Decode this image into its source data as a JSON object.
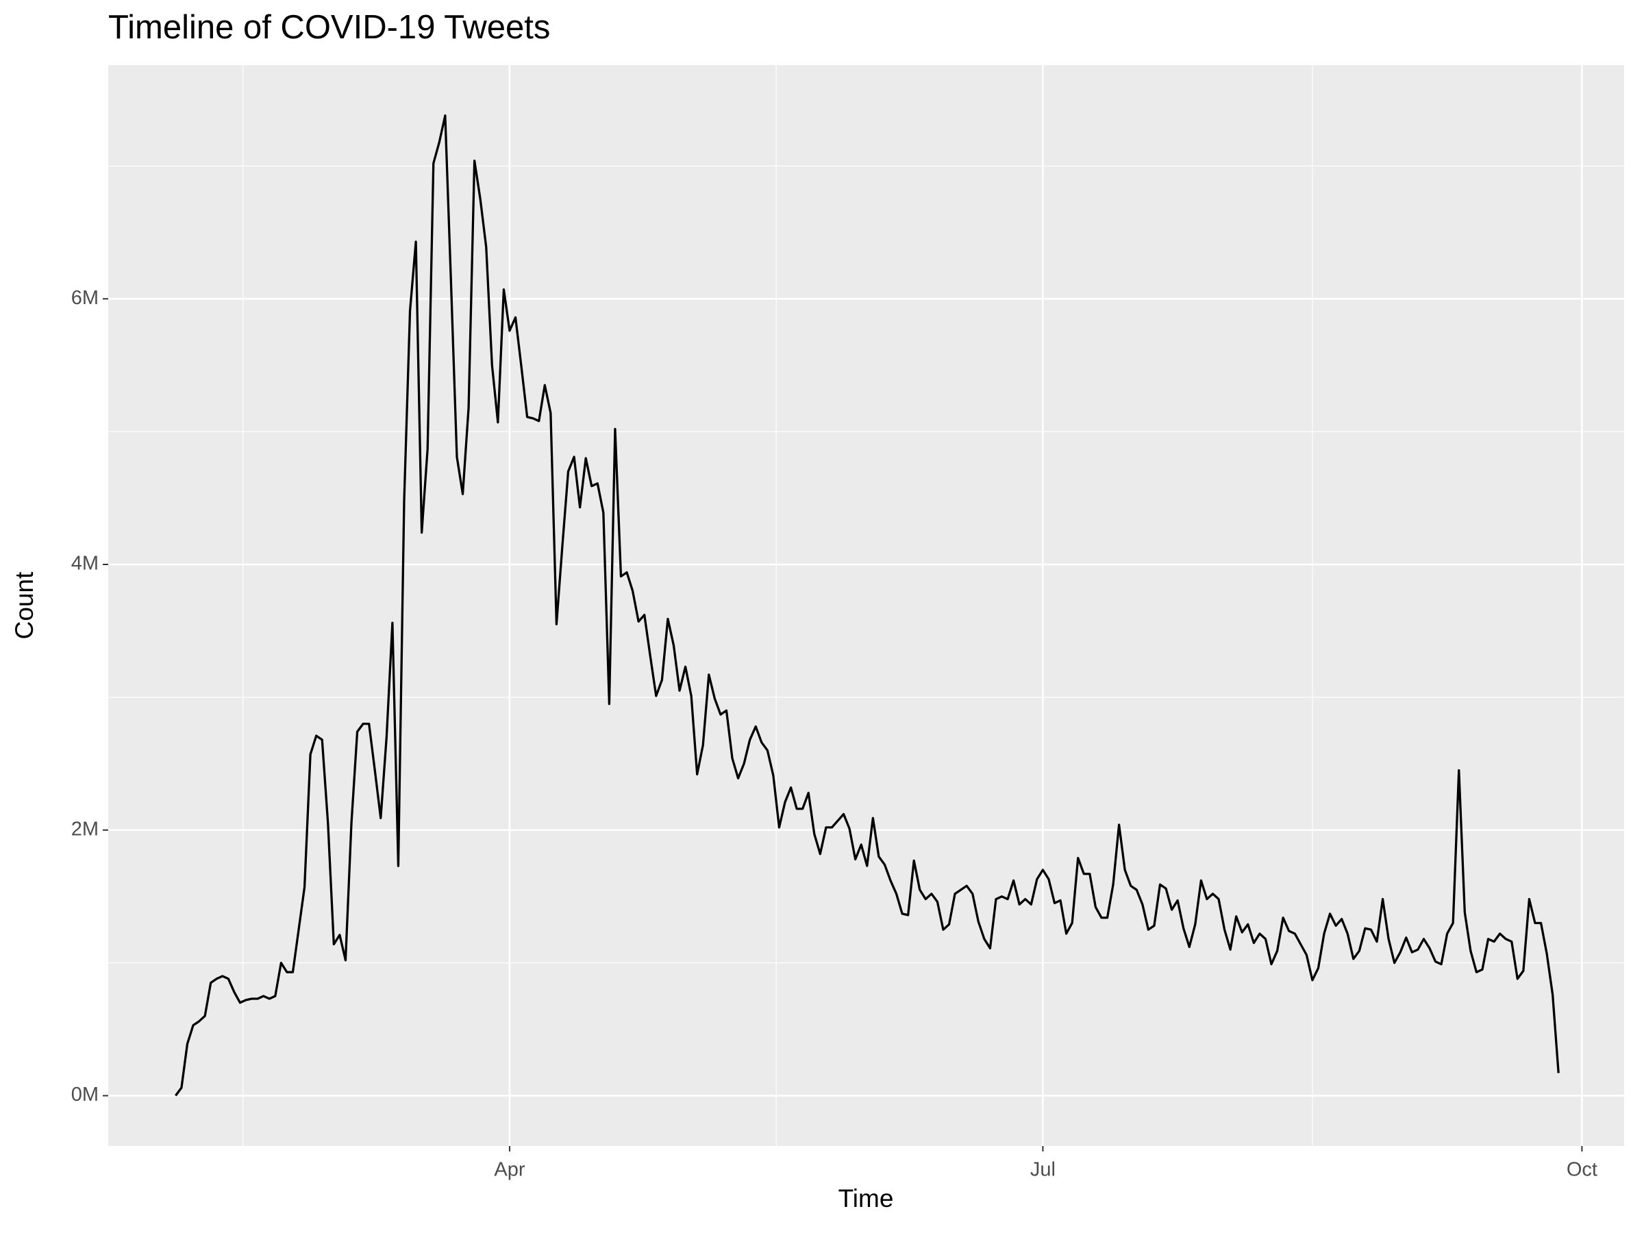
{
  "chart_data": {
    "type": "line",
    "title": "Timeline of COVID-19 Tweets",
    "x_label": "Time",
    "y_label": "Count",
    "x": [
      34,
      35,
      36,
      37,
      38,
      39,
      40,
      41,
      42,
      43,
      44,
      45,
      46,
      47,
      48,
      49,
      50,
      51,
      52,
      53,
      54,
      55,
      56,
      57,
      58,
      59,
      60,
      61,
      62,
      63,
      64,
      65,
      66,
      67,
      68,
      69,
      70,
      71,
      72,
      73,
      74,
      75,
      76,
      77,
      78,
      79,
      80,
      81,
      82,
      83,
      84,
      85,
      86,
      87,
      88,
      89,
      90,
      91,
      92,
      93,
      94,
      95,
      96,
      97,
      98,
      99,
      100,
      101,
      102,
      103,
      104,
      105,
      106,
      107,
      108,
      109,
      110,
      111,
      112,
      113,
      114,
      115,
      116,
      117,
      118,
      119,
      120,
      121,
      122,
      123,
      124,
      125,
      126,
      127,
      128,
      129,
      130,
      131,
      132,
      133,
      134,
      135,
      136,
      137,
      138,
      139,
      140,
      141,
      142,
      143,
      144,
      145,
      146,
      147,
      148,
      149,
      150,
      151,
      152,
      153,
      154,
      155,
      156,
      157,
      158,
      159,
      160,
      161,
      162,
      163,
      164,
      165,
      166,
      167,
      168,
      169,
      170,
      171,
      172,
      173,
      174,
      175,
      176,
      177,
      178,
      179,
      180,
      181,
      182,
      183,
      184,
      185,
      186,
      187,
      188,
      189,
      190,
      191,
      192,
      193,
      194,
      195,
      196,
      197,
      198,
      199,
      200,
      201,
      202,
      203,
      204,
      205,
      206,
      207,
      208,
      209,
      210,
      211,
      212,
      213,
      214,
      215,
      216,
      217,
      218,
      219,
      220,
      221,
      222,
      223,
      224,
      225,
      226,
      227,
      228,
      229,
      230,
      231,
      232,
      233,
      234,
      235,
      236,
      237,
      238,
      239,
      240,
      241,
      242,
      243,
      244,
      245,
      246,
      247,
      248,
      249,
      250,
      251,
      252,
      253,
      254,
      255,
      256,
      257,
      258,
      259,
      260,
      261,
      262,
      263,
      264,
      265,
      266,
      267,
      268,
      269,
      270
    ],
    "series": [
      {
        "name": "Count",
        "color": "#000000",
        "values": [
          0,
          60000,
          390000,
          530000,
          560000,
          600000,
          850000,
          880000,
          900000,
          880000,
          780000,
          700000,
          720000,
          730000,
          730000,
          750000,
          730000,
          750000,
          1000000,
          930000,
          930000,
          1250000,
          1570000,
          2570000,
          2710000,
          2680000,
          2050000,
          1140000,
          1210000,
          1020000,
          2050000,
          2740000,
          2800000,
          2800000,
          2450000,
          2090000,
          2700000,
          3560000,
          1730000,
          4480000,
          5910000,
          6430000,
          4240000,
          4870000,
          7020000,
          7180000,
          7380000,
          6120000,
          4810000,
          4530000,
          5180000,
          7040000,
          6750000,
          6390000,
          5500000,
          5070000,
          6070000,
          5760000,
          5860000,
          5490000,
          5110000,
          5100000,
          5080000,
          5350000,
          5140000,
          3550000,
          4140000,
          4700000,
          4810000,
          4430000,
          4800000,
          4590000,
          4610000,
          4390000,
          2950000,
          5020000,
          3910000,
          3940000,
          3800000,
          3570000,
          3620000,
          3310000,
          3010000,
          3130000,
          3590000,
          3390000,
          3050000,
          3230000,
          3010000,
          2420000,
          2640000,
          3170000,
          2990000,
          2870000,
          2900000,
          2540000,
          2390000,
          2500000,
          2680000,
          2780000,
          2660000,
          2600000,
          2410000,
          2020000,
          2210000,
          2320000,
          2160000,
          2160000,
          2280000,
          1970000,
          1820000,
          2020000,
          2020000,
          2070000,
          2120000,
          2010000,
          1780000,
          1890000,
          1730000,
          2090000,
          1800000,
          1740000,
          1620000,
          1520000,
          1370000,
          1360000,
          1770000,
          1550000,
          1480000,
          1520000,
          1460000,
          1250000,
          1290000,
          1520000,
          1550000,
          1580000,
          1520000,
          1310000,
          1180000,
          1110000,
          1480000,
          1500000,
          1480000,
          1620000,
          1440000,
          1480000,
          1440000,
          1630000,
          1700000,
          1630000,
          1450000,
          1470000,
          1220000,
          1300000,
          1790000,
          1670000,
          1670000,
          1420000,
          1340000,
          1340000,
          1590000,
          2040000,
          1700000,
          1580000,
          1550000,
          1440000,
          1250000,
          1280000,
          1590000,
          1560000,
          1400000,
          1470000,
          1260000,
          1120000,
          1290000,
          1620000,
          1480000,
          1520000,
          1480000,
          1250000,
          1100000,
          1350000,
          1230000,
          1290000,
          1150000,
          1220000,
          1180000,
          990000,
          1090000,
          1340000,
          1240000,
          1220000,
          1140000,
          1060000,
          870000,
          960000,
          1220000,
          1370000,
          1280000,
          1330000,
          1220000,
          1030000,
          1090000,
          1260000,
          1250000,
          1160000,
          1480000,
          1180000,
          1000000,
          1080000,
          1190000,
          1080000,
          1100000,
          1180000,
          1110000,
          1010000,
          990000,
          1220000,
          1300000,
          2450000,
          1380000,
          1090000,
          930000,
          950000,
          1180000,
          1160000,
          1220000,
          1180000,
          1160000,
          880000,
          940000,
          1480000,
          1300000,
          1300000,
          1070000,
          760000,
          170000
        ]
      }
    ],
    "xlim": [
      22.5,
      281.2
    ],
    "xticks": [
      {
        "value": 91,
        "label": "Apr"
      },
      {
        "value": 182,
        "label": "Jul"
      },
      {
        "value": 274,
        "label": "Oct"
      }
    ],
    "ylim": [
      -379000,
      7760000
    ],
    "yticks": [
      {
        "value": 0,
        "label": "0M"
      },
      {
        "value": 2000000,
        "label": "2M"
      },
      {
        "value": 4000000,
        "label": "4M"
      },
      {
        "value": 6000000,
        "label": "6M"
      }
    ],
    "grid": true
  }
}
